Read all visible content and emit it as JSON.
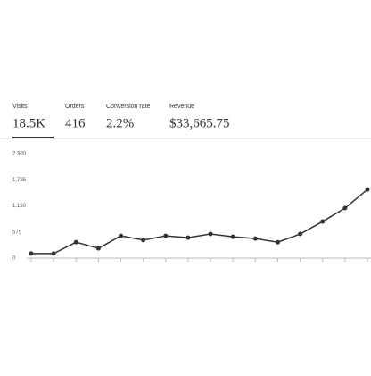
{
  "metrics": [
    {
      "label": "Visits",
      "value": "18.5K"
    },
    {
      "label": "Orders",
      "value": "416"
    },
    {
      "label": "Conversion rate",
      "value": "2.2%"
    },
    {
      "label": "Revenue",
      "value": "$33,665.75"
    }
  ],
  "chart_data": {
    "type": "line",
    "categories": [
      null,
      null,
      null,
      null,
      null,
      null,
      null,
      null,
      null,
      null,
      null,
      null,
      null,
      null,
      null,
      null
    ],
    "values": [
      100,
      100,
      350,
      215,
      490,
      395,
      490,
      450,
      530,
      470,
      430,
      350,
      530,
      805,
      1100,
      1510
    ],
    "color": "#333333",
    "ylim": [
      0,
      2300
    ],
    "yticks": [
      0,
      575,
      {
        "value": 1150,
        "label": "1,150"
      },
      {
        "value": 1725,
        "label": "1,725"
      },
      {
        "value": 2300,
        "label": "2,300"
      }
    ],
    "grid": false
  }
}
